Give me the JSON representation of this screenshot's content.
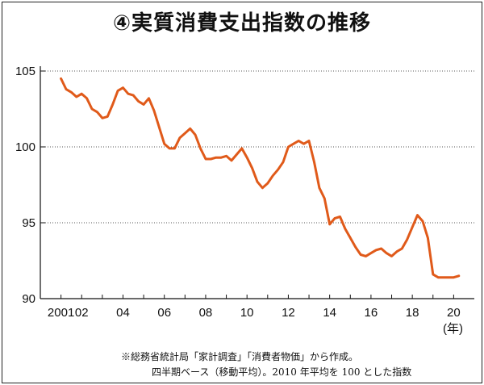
{
  "title": "④実質消費支出指数の推移",
  "note_line1": "※総務省統計局「家計調査」「消費者物価」から作成。",
  "note_line2": "四半期ベース（移動平均）。2010 年平均を 100 とした指数",
  "colors": {
    "line": "#e05a1a",
    "grid": "#555555",
    "axis": "#111111"
  },
  "chart_data": {
    "type": "line",
    "title": "④実質消費支出指数の推移",
    "xlabel": "(年)",
    "ylabel": "",
    "ylim": [
      90,
      105
    ],
    "yticks": [
      90,
      95,
      100,
      105
    ],
    "xlim": [
      2000.0,
      2021.0
    ],
    "xticks": [
      {
        "x": 2001,
        "label": "2001"
      },
      {
        "x": 2002,
        "label": "02"
      },
      {
        "x": 2004,
        "label": "04"
      },
      {
        "x": 2006,
        "label": "06"
      },
      {
        "x": 2008,
        "label": "08"
      },
      {
        "x": 2010,
        "label": "10"
      },
      {
        "x": 2012,
        "label": "12"
      },
      {
        "x": 2014,
        "label": "14"
      },
      {
        "x": 2016,
        "label": "16"
      },
      {
        "x": 2018,
        "label": "18"
      },
      {
        "x": 2020,
        "label": "20"
      }
    ],
    "grid": "horizontal dotted",
    "series": [
      {
        "x": [
          2001.0,
          2001.25,
          2001.5,
          2001.75,
          2002.0,
          2002.25,
          2002.5,
          2002.75,
          2003.0,
          2003.25,
          2003.5,
          2003.75,
          2004.0,
          2004.25,
          2004.5,
          2004.75,
          2005.0,
          2005.25,
          2005.5,
          2005.75,
          2006.0,
          2006.25,
          2006.5,
          2006.75,
          2007.0,
          2007.25,
          2007.5,
          2007.75,
          2008.0,
          2008.25,
          2008.5,
          2008.75,
          2009.0,
          2009.25,
          2009.5,
          2009.75,
          2010.0,
          2010.25,
          2010.5,
          2010.75,
          2011.0,
          2011.25,
          2011.5,
          2011.75,
          2012.0,
          2012.25,
          2012.5,
          2012.75,
          2013.0,
          2013.25,
          2013.5,
          2013.75,
          2014.0,
          2014.25,
          2014.5,
          2014.75,
          2015.0,
          2015.25,
          2015.5,
          2015.75,
          2016.0,
          2016.25,
          2016.5,
          2016.75,
          2017.0,
          2017.25,
          2017.5,
          2017.75,
          2018.0,
          2018.25,
          2018.5,
          2018.75,
          2019.0,
          2019.25,
          2019.5,
          2019.75,
          2020.0,
          2020.25
        ],
        "values": [
          104.5,
          103.8,
          103.6,
          103.3,
          103.5,
          103.2,
          102.5,
          102.3,
          101.9,
          102.0,
          102.8,
          103.7,
          103.9,
          103.5,
          103.4,
          103.0,
          102.8,
          103.2,
          102.4,
          101.3,
          100.2,
          99.9,
          99.9,
          100.6,
          100.9,
          101.2,
          100.8,
          99.9,
          99.2,
          99.2,
          99.3,
          99.3,
          99.4,
          99.1,
          99.5,
          99.9,
          99.3,
          98.6,
          97.7,
          97.3,
          97.6,
          98.1,
          98.5,
          99.0,
          100.0,
          100.2,
          100.4,
          100.2,
          100.4,
          99.0,
          97.3,
          96.6,
          94.9,
          95.3,
          95.4,
          94.6,
          94.0,
          93.4,
          92.9,
          92.8,
          93.0,
          93.2,
          93.3,
          93.0,
          92.8,
          93.1,
          93.3,
          93.9,
          94.7,
          95.5,
          95.1,
          94.0,
          91.6,
          91.4,
          91.4,
          91.4,
          91.4,
          91.5
        ]
      }
    ]
  }
}
